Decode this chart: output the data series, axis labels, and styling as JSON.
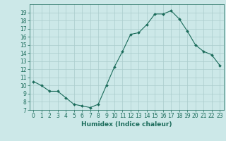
{
  "x": [
    0,
    1,
    2,
    3,
    4,
    5,
    6,
    7,
    8,
    9,
    10,
    11,
    12,
    13,
    14,
    15,
    16,
    17,
    18,
    19,
    20,
    21,
    22,
    23
  ],
  "y": [
    10.5,
    10.0,
    9.3,
    9.3,
    8.5,
    7.7,
    7.5,
    7.3,
    7.7,
    10.0,
    12.3,
    14.2,
    16.3,
    16.5,
    17.5,
    18.8,
    18.8,
    19.2,
    18.2,
    16.7,
    15.0,
    14.2,
    13.8,
    12.5
  ],
  "xlim": [
    -0.5,
    23.5
  ],
  "ylim": [
    7,
    20
  ],
  "yticks": [
    7,
    8,
    9,
    10,
    11,
    12,
    13,
    14,
    15,
    16,
    17,
    18,
    19
  ],
  "xticks": [
    0,
    1,
    2,
    3,
    4,
    5,
    6,
    7,
    8,
    9,
    10,
    11,
    12,
    13,
    14,
    15,
    16,
    17,
    18,
    19,
    20,
    21,
    22,
    23
  ],
  "xlabel": "Humidex (Indice chaleur)",
  "line_color": "#1a6b5a",
  "marker": "D",
  "marker_size": 2.0,
  "background_color": "#cce8e8",
  "grid_color": "#aacccc",
  "tick_fontsize": 5.5,
  "xlabel_fontsize": 6.5
}
